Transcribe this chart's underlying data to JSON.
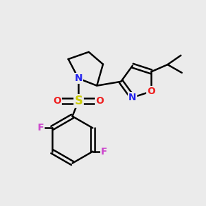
{
  "bg_color": "#ebebeb",
  "bond_color": "#000000",
  "bond_width": 1.8,
  "atoms": {
    "N": {
      "color": "#2222ee",
      "fontsize": 10,
      "fontweight": "bold"
    },
    "O": {
      "color": "#ee2222",
      "fontsize": 10,
      "fontweight": "bold"
    },
    "S": {
      "color": "#cccc00",
      "fontsize": 12,
      "fontweight": "bold"
    },
    "F": {
      "color": "#cc44cc",
      "fontsize": 10,
      "fontweight": "bold"
    }
  },
  "figsize": [
    3.0,
    3.0
  ],
  "dpi": 100
}
